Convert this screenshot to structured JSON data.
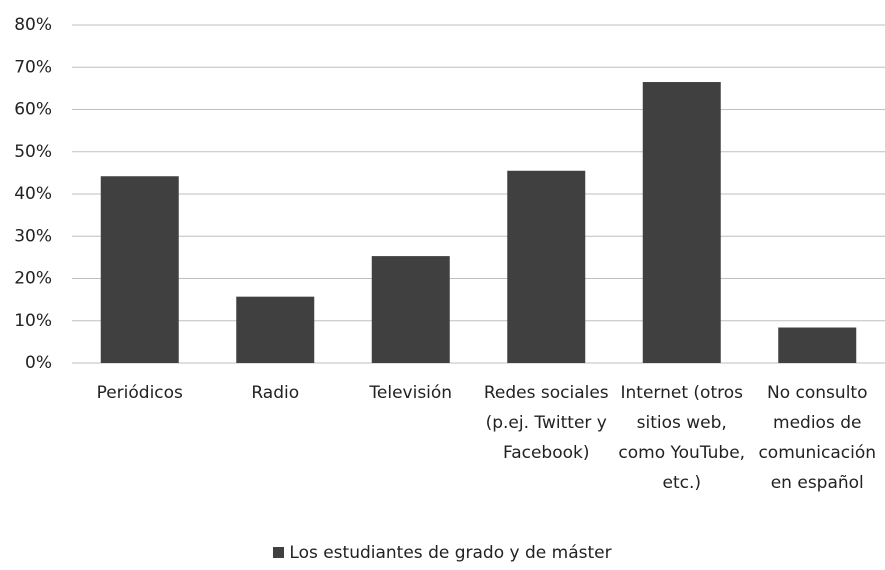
{
  "chart_data": {
    "type": "bar",
    "categories": [
      "Periódicos",
      "Radio",
      "Televisión",
      "Redes sociales (p.ej. Twitter y Facebook)",
      "Internet (otros sitios web, como YouTube, etc.)",
      "No consulto medios de comunicación en español"
    ],
    "series": [
      {
        "name": "Los estudiantes de grado y de máster",
        "color": "#404040",
        "values": [
          44.2,
          15.7,
          25.3,
          45.5,
          66.5,
          8.4
        ]
      }
    ],
    "ylim": [
      0,
      80
    ],
    "yticks": [
      {
        "value": 0,
        "label": "0%"
      },
      {
        "value": 10,
        "label": "10%"
      },
      {
        "value": 20,
        "label": "20%"
      },
      {
        "value": 30,
        "label": "30%"
      },
      {
        "value": 40,
        "label": "40%"
      },
      {
        "value": 50,
        "label": "50%"
      },
      {
        "value": 60,
        "label": "60%"
      },
      {
        "value": 70,
        "label": "70%"
      },
      {
        "value": 80,
        "label": "80%"
      }
    ],
    "grid": true,
    "legend": "bottom"
  }
}
